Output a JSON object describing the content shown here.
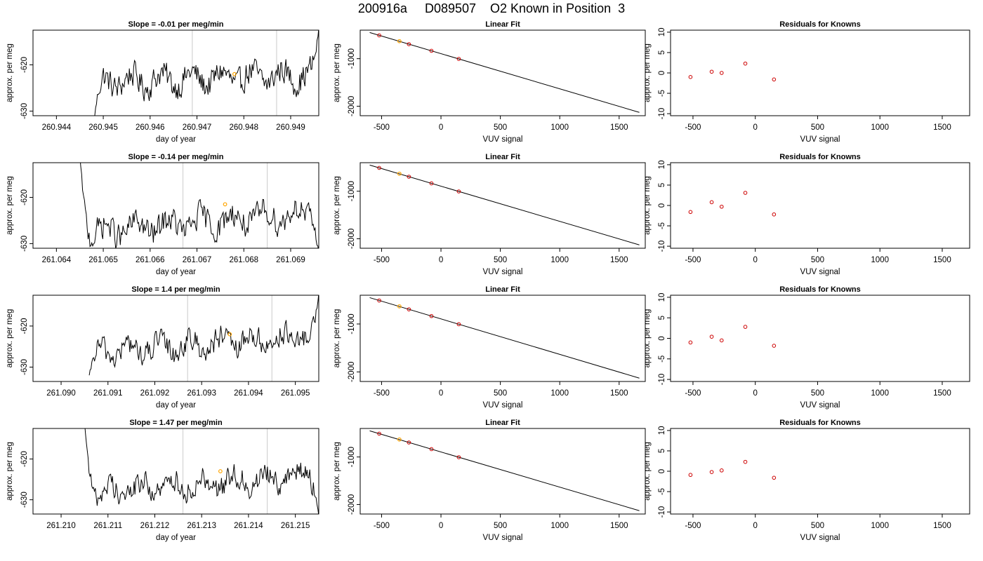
{
  "header": {
    "title": "200916a     D089507    O2 Known in Position  3"
  },
  "colors": {
    "trace": "#000000",
    "vertical_marker": "#d3d3d3",
    "known_point": "#cd0000",
    "highlight_point": "#ffa500",
    "frame": "#000000"
  },
  "chart_data": [
    {
      "type": "line",
      "row": 0,
      "panel": "time-series",
      "title": "Slope =  -0.01  per meg/min",
      "xlabel": "day of year",
      "ylabel": "approx. per meg",
      "xlim": [
        260.9435,
        260.9496
      ],
      "ylim": [
        -631.0,
        -612.5
      ],
      "xticks": [
        260.944,
        260.945,
        260.946,
        260.947,
        260.948,
        260.949
      ],
      "xtick_labels": [
        "260.944",
        "260.945",
        "260.946",
        "260.947",
        "260.948",
        "260.949"
      ],
      "yticks": [
        -630,
        -620
      ],
      "ytick_labels": [
        "-630",
        "-620"
      ],
      "trace_start": 260.9448,
      "trace_end": 260.9496,
      "start_value": -632,
      "level": -623.0,
      "drift": 1.5,
      "end_value": -612,
      "markers": [
        260.9469,
        260.9487
      ],
      "highlight_point": {
        "x": 260.9478,
        "y": -622.0
      }
    },
    {
      "type": "scatter",
      "row": 0,
      "panel": "linear-fit",
      "title": "Linear Fit",
      "xlabel": "VUV signal",
      "ylabel": "approx. per meg",
      "xlim": [
        -680,
        1720
      ],
      "ylim": [
        -2200,
        -400
      ],
      "xticks": [
        -500,
        0,
        500,
        1000,
        1500
      ],
      "xtick_labels": [
        "-500",
        "0",
        "500",
        "1000",
        "1500"
      ],
      "yticks": [
        -2000,
        -1000
      ],
      "ytick_labels": [
        "-2000",
        "-1000"
      ],
      "fit_line": {
        "x": [
          -600,
          1670
        ],
        "y": [
          -450,
          -2130
        ]
      },
      "points": [
        {
          "x": -520,
          "y": -510
        },
        {
          "x": -270,
          "y": -695
        },
        {
          "x": -80,
          "y": -835
        },
        {
          "x": 150,
          "y": -1005
        }
      ],
      "highlight_point": {
        "x": -350,
        "y": -632
      }
    },
    {
      "type": "scatter",
      "row": 0,
      "panel": "residuals",
      "title": "Residuals for Knowns",
      "xlabel": "VUV signal",
      "ylabel": "approx. per meg",
      "xlim": [
        -680,
        1720
      ],
      "ylim": [
        -10.5,
        10.5
      ],
      "xticks": [
        -500,
        0,
        500,
        1000,
        1500
      ],
      "xtick_labels": [
        "-500",
        "0",
        "500",
        "1000",
        "1500"
      ],
      "yticks": [
        -10,
        -5,
        0,
        5,
        10
      ],
      "ytick_labels": [
        "-10",
        "-5",
        "0",
        "5",
        "10"
      ],
      "points": [
        {
          "x": -520,
          "y": -1.0
        },
        {
          "x": -350,
          "y": 0.3
        },
        {
          "x": -270,
          "y": 0.0
        },
        {
          "x": -80,
          "y": 2.3
        },
        {
          "x": 150,
          "y": -1.6
        }
      ]
    },
    {
      "type": "line",
      "row": 1,
      "panel": "time-series",
      "title": "Slope =  -0.14  per meg/min",
      "xlabel": "day of year",
      "ylabel": "approx. per meg",
      "xlim": [
        261.0635,
        261.0696
      ],
      "ylim": [
        -631.0,
        -612.5
      ],
      "xticks": [
        261.064,
        261.065,
        261.066,
        261.067,
        261.068,
        261.069
      ],
      "xtick_labels": [
        "261.064",
        "261.065",
        "261.066",
        "261.067",
        "261.068",
        "261.069"
      ],
      "yticks": [
        -630,
        -620
      ],
      "ytick_labels": [
        "-630",
        "-620"
      ],
      "trace_start": 261.0645,
      "trace_end": 261.0696,
      "start_value": -611,
      "level": -625.5,
      "drift": 4.5,
      "end_value": -632,
      "markers": [
        261.0667,
        261.0685
      ],
      "highlight_point": {
        "x": 261.0676,
        "y": -621.5
      }
    },
    {
      "type": "scatter",
      "row": 1,
      "panel": "linear-fit",
      "title": "Linear Fit",
      "xlabel": "VUV signal",
      "ylabel": "approx. per meg",
      "xlim": [
        -680,
        1720
      ],
      "ylim": [
        -2200,
        -400
      ],
      "xticks": [
        -500,
        0,
        500,
        1000,
        1500
      ],
      "xtick_labels": [
        "-500",
        "0",
        "500",
        "1000",
        "1500"
      ],
      "yticks": [
        -2000,
        -1000
      ],
      "ytick_labels": [
        "-2000",
        "-1000"
      ],
      "fit_line": {
        "x": [
          -600,
          1670
        ],
        "y": [
          -450,
          -2130
        ]
      },
      "points": [
        {
          "x": -520,
          "y": -510
        },
        {
          "x": -270,
          "y": -695
        },
        {
          "x": -80,
          "y": -835
        },
        {
          "x": 150,
          "y": -1005
        }
      ],
      "highlight_point": {
        "x": -350,
        "y": -632
      }
    },
    {
      "type": "scatter",
      "row": 1,
      "panel": "residuals",
      "title": "Residuals for Knowns",
      "xlabel": "VUV signal",
      "ylabel": "approx. per meg",
      "xlim": [
        -680,
        1720
      ],
      "ylim": [
        -10.5,
        10.5
      ],
      "xticks": [
        -500,
        0,
        500,
        1000,
        1500
      ],
      "xtick_labels": [
        "-500",
        "0",
        "500",
        "1000",
        "1500"
      ],
      "yticks": [
        -10,
        -5,
        0,
        5,
        10
      ],
      "ytick_labels": [
        "-10",
        "-5",
        "0",
        "5",
        "10"
      ],
      "points": [
        {
          "x": -520,
          "y": -1.6
        },
        {
          "x": -350,
          "y": 0.8
        },
        {
          "x": -270,
          "y": -0.3
        },
        {
          "x": -80,
          "y": 3.1
        },
        {
          "x": 150,
          "y": -2.2
        }
      ]
    },
    {
      "type": "line",
      "row": 2,
      "panel": "time-series",
      "title": "Slope =  1.4  per meg/min",
      "xlabel": "day of year",
      "ylabel": "approx. per meg",
      "xlim": [
        261.0894,
        261.0955
      ],
      "ylim": [
        -633.5,
        -612.5
      ],
      "xticks": [
        261.09,
        261.091,
        261.092,
        261.093,
        261.094,
        261.095
      ],
      "xtick_labels": [
        "261.090",
        "261.091",
        "261.092",
        "261.093",
        "261.094",
        "261.095"
      ],
      "yticks": [
        -630,
        -620
      ],
      "ytick_labels": [
        "-630",
        "-620"
      ],
      "trace_start": 261.0906,
      "trace_end": 261.0955,
      "start_value": -632,
      "level": -624.5,
      "drift": 4.0,
      "end_value": -612,
      "markers": [
        261.0927,
        261.0945
      ],
      "highlight_point": {
        "x": 261.0936,
        "y": -622.0
      }
    },
    {
      "type": "scatter",
      "row": 2,
      "panel": "linear-fit",
      "title": "Linear Fit",
      "xlabel": "VUV signal",
      "ylabel": "approx. per meg",
      "xlim": [
        -680,
        1720
      ],
      "ylim": [
        -2200,
        -400
      ],
      "xticks": [
        -500,
        0,
        500,
        1000,
        1500
      ],
      "xtick_labels": [
        "-500",
        "0",
        "500",
        "1000",
        "1500"
      ],
      "yticks": [
        -2000,
        -1000
      ],
      "ytick_labels": [
        "-2000",
        "-1000"
      ],
      "fit_line": {
        "x": [
          -600,
          1670
        ],
        "y": [
          -450,
          -2130
        ]
      },
      "points": [
        {
          "x": -520,
          "y": -510
        },
        {
          "x": -270,
          "y": -695
        },
        {
          "x": -80,
          "y": -835
        },
        {
          "x": 150,
          "y": -1005
        }
      ],
      "highlight_point": {
        "x": -350,
        "y": -632
      }
    },
    {
      "type": "scatter",
      "row": 2,
      "panel": "residuals",
      "title": "Residuals for Knowns",
      "xlabel": "VUV signal",
      "ylabel": "approx. per meg",
      "xlim": [
        -680,
        1720
      ],
      "ylim": [
        -10.5,
        10.5
      ],
      "xticks": [
        -500,
        0,
        500,
        1000,
        1500
      ],
      "xtick_labels": [
        "-500",
        "0",
        "500",
        "1000",
        "1500"
      ],
      "yticks": [
        -10,
        -5,
        0,
        5,
        10
      ],
      "ytick_labels": [
        "-10",
        "-5",
        "0",
        "5",
        "10"
      ],
      "points": [
        {
          "x": -520,
          "y": -1.0
        },
        {
          "x": -350,
          "y": 0.4
        },
        {
          "x": -270,
          "y": -0.5
        },
        {
          "x": -80,
          "y": 2.8
        },
        {
          "x": 150,
          "y": -1.8
        }
      ]
    },
    {
      "type": "line",
      "row": 3,
      "panel": "time-series",
      "title": "Slope =  1.47  per meg/min",
      "xlabel": "day of year",
      "ylabel": "approx. per meg",
      "xlim": [
        261.2094,
        261.2155
      ],
      "ylim": [
        -633.5,
        -612.5
      ],
      "xticks": [
        261.21,
        261.211,
        261.212,
        261.213,
        261.214,
        261.215
      ],
      "xtick_labels": [
        "261.210",
        "261.211",
        "261.212",
        "261.213",
        "261.214",
        "261.215"
      ],
      "yticks": [
        -630,
        -620
      ],
      "ytick_labels": [
        "-630",
        "-620"
      ],
      "trace_start": 261.2105,
      "trace_end": 261.2155,
      "start_value": -611,
      "level": -626.0,
      "drift": 4.5,
      "end_value": -634,
      "markers": [
        261.2126,
        261.2144
      ],
      "highlight_point": {
        "x": 261.2134,
        "y": -623.0
      }
    },
    {
      "type": "scatter",
      "row": 3,
      "panel": "linear-fit",
      "title": "Linear Fit",
      "xlabel": "VUV signal",
      "ylabel": "approx. per meg",
      "xlim": [
        -680,
        1720
      ],
      "ylim": [
        -2200,
        -400
      ],
      "xticks": [
        -500,
        0,
        500,
        1000,
        1500
      ],
      "xtick_labels": [
        "-500",
        "0",
        "500",
        "1000",
        "1500"
      ],
      "yticks": [
        -2000,
        -1000
      ],
      "ytick_labels": [
        "-2000",
        "-1000"
      ],
      "fit_line": {
        "x": [
          -600,
          1670
        ],
        "y": [
          -450,
          -2130
        ]
      },
      "points": [
        {
          "x": -520,
          "y": -510
        },
        {
          "x": -270,
          "y": -695
        },
        {
          "x": -80,
          "y": -835
        },
        {
          "x": 150,
          "y": -1005
        }
      ],
      "highlight_point": {
        "x": -350,
        "y": -632
      }
    },
    {
      "type": "scatter",
      "row": 3,
      "panel": "residuals",
      "title": "Residuals for Knowns",
      "xlabel": "VUV signal",
      "ylabel": "approx. per meg",
      "xlim": [
        -680,
        1720
      ],
      "ylim": [
        -10.5,
        10.5
      ],
      "xticks": [
        -500,
        0,
        500,
        1000,
        1500
      ],
      "xtick_labels": [
        "-500",
        "0",
        "500",
        "1000",
        "1500"
      ],
      "yticks": [
        -10,
        -5,
        0,
        5,
        10
      ],
      "ytick_labels": [
        "-10",
        "-5",
        "0",
        "5",
        "10"
      ],
      "points": [
        {
          "x": -520,
          "y": -0.9
        },
        {
          "x": -350,
          "y": -0.2
        },
        {
          "x": -270,
          "y": 0.2
        },
        {
          "x": -80,
          "y": 2.3
        },
        {
          "x": 150,
          "y": -1.6
        }
      ]
    }
  ]
}
